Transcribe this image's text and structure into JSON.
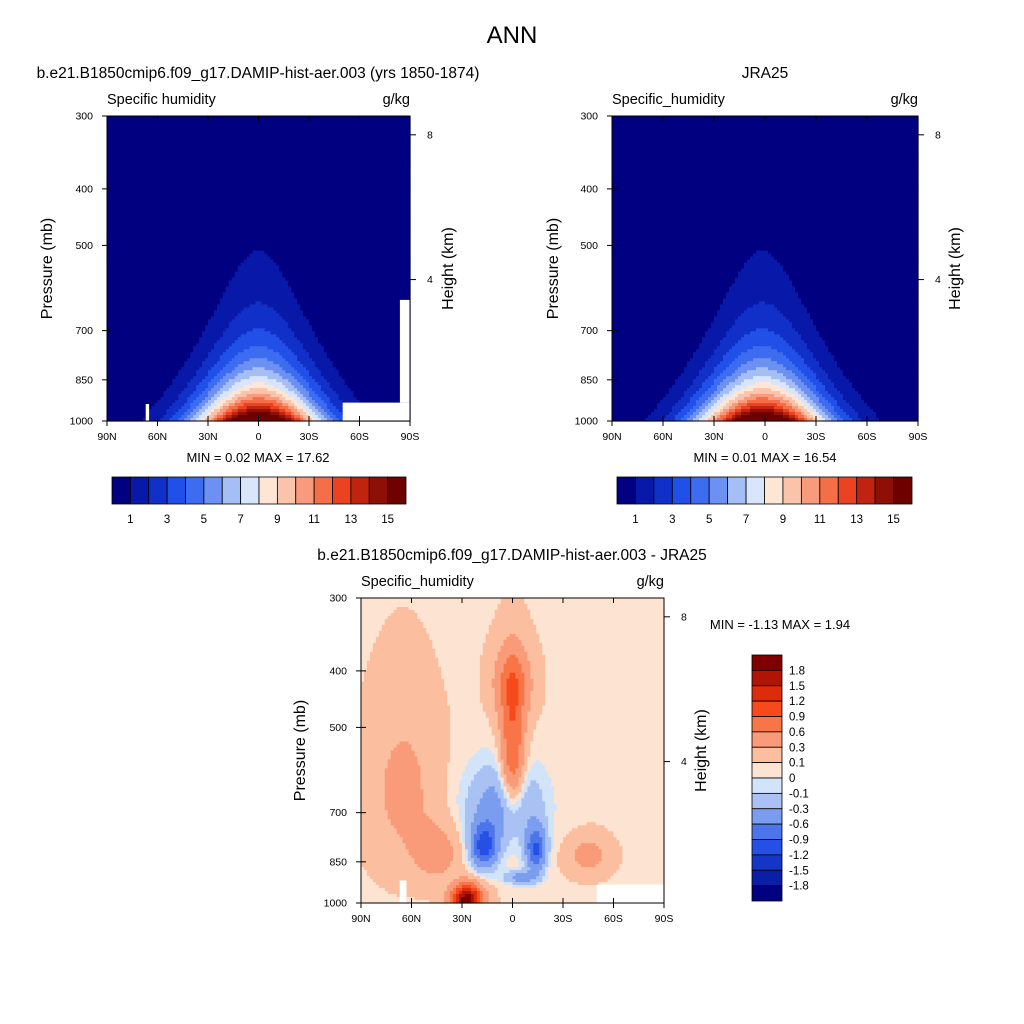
{
  "page_title": "ANN",
  "chart_data": [
    {
      "type": "heatmap",
      "title": "b.e21.B1850cmip6.f09_g17.DAMIP-hist-aer.003 (yrs 1850-1874)",
      "variable": "Specific humidity",
      "units": "g/kg",
      "ylabel": "Pressure (mb)",
      "ylabel_right": "Height (km)",
      "x_ticks": [
        "90N",
        "60N",
        "30N",
        "0",
        "30S",
        "60S",
        "90S"
      ],
      "y_ticks": [
        300,
        400,
        500,
        700,
        850,
        1000
      ],
      "height_ticks": [
        8,
        4
      ],
      "stats": "MIN =   0.02  MAX = 17.62",
      "min": 0.02,
      "max": 17.62,
      "colorbar_labels": [
        "1",
        "3",
        "5",
        "7",
        "9",
        "11",
        "13",
        "15"
      ],
      "colorbar_levels": [
        1,
        2,
        3,
        4,
        5,
        6,
        7,
        8,
        9,
        10,
        11,
        12,
        13,
        14,
        15
      ],
      "peak_latitude": 0,
      "peak_pressure": 1000
    },
    {
      "type": "heatmap",
      "title": "JRA25",
      "variable": "Specific_humidity",
      "units": "g/kg",
      "ylabel": "Pressure (mb)",
      "ylabel_right": "Height (km)",
      "x_ticks": [
        "90N",
        "60N",
        "30N",
        "0",
        "30S",
        "60S",
        "90S"
      ],
      "y_ticks": [
        300,
        400,
        500,
        700,
        850,
        1000
      ],
      "height_ticks": [
        8,
        4
      ],
      "stats": "MIN =   0.01  MAX = 16.54",
      "min": 0.01,
      "max": 16.54,
      "colorbar_labels": [
        "1",
        "3",
        "5",
        "7",
        "9",
        "11",
        "13",
        "15"
      ],
      "colorbar_levels": [
        1,
        2,
        3,
        4,
        5,
        6,
        7,
        8,
        9,
        10,
        11,
        12,
        13,
        14,
        15
      ],
      "peak_latitude": 0,
      "peak_pressure": 1000
    },
    {
      "type": "heatmap",
      "title": "b.e21.B1850cmip6.f09_g17.DAMIP-hist-aer.003 - JRA25",
      "variable": "Specific_humidity",
      "units": "g/kg",
      "ylabel": "Pressure (mb)",
      "ylabel_right": "Height (km)",
      "x_ticks": [
        "90N",
        "60N",
        "30N",
        "0",
        "30S",
        "60S",
        "90S"
      ],
      "y_ticks": [
        300,
        400,
        500,
        700,
        850,
        1000
      ],
      "height_ticks": [
        8,
        4
      ],
      "stats": "MIN =  -1.13  MAX =   1.94",
      "min": -1.13,
      "max": 1.94,
      "colorbar_labels": [
        "1.8",
        "1.5",
        "1.2",
        "0.9",
        "0.6",
        "0.3",
        "0.1",
        "0",
        "-0.1",
        "-0.3",
        "-0.6",
        "-0.9",
        "-1.2",
        "-1.5",
        "-1.8"
      ],
      "colorbar_levels": [
        1.8,
        1.5,
        1.2,
        0.9,
        0.6,
        0.3,
        0.1,
        0,
        -0.1,
        -0.3,
        -0.6,
        -0.9,
        -1.2,
        -1.5,
        -1.8
      ]
    }
  ],
  "colors": {
    "sequential": [
      "#000080",
      "#0818A8",
      "#1030C8",
      "#2050E8",
      "#3D6CF0",
      "#6C91F2",
      "#A5BEF5",
      "#D8E5FA",
      "#FDE6D4",
      "#FAC3AC",
      "#F89A7C",
      "#F46E48",
      "#EB4321",
      "#C02410",
      "#8E0F06",
      "#6E0000"
    ],
    "diverging": [
      "#800000",
      "#B11405",
      "#DC2C0A",
      "#F64A1C",
      "#F77547",
      "#F99A78",
      "#FBBE9E",
      "#FDE4D2",
      "#D2E4F9",
      "#A9C1F3",
      "#7A9DEF",
      "#4C74EB",
      "#2450E6",
      "#1535C8",
      "#0A1FA6",
      "#000080"
    ],
    "missing": "#FFFFFF"
  }
}
